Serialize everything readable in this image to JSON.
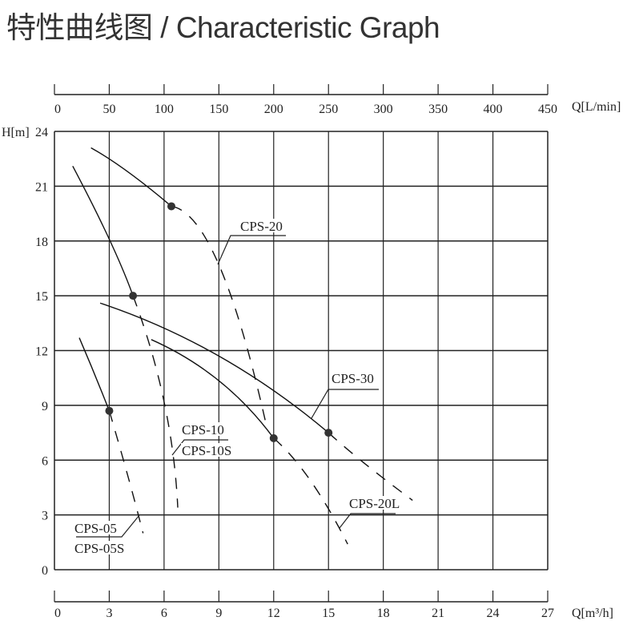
{
  "chart_data": {
    "type": "line",
    "title": "特性曲线图 / Characteristic Graph",
    "xlabel": "Q[m³/h]",
    "x2label": "Q[L/min]",
    "ylabel": "H[m]",
    "xlim": [
      0,
      27
    ],
    "x2lim": [
      0,
      450
    ],
    "ylim": [
      0,
      24
    ],
    "xticks": [
      "0",
      "3",
      "6",
      "9",
      "12",
      "15",
      "18",
      "21",
      "24",
      "27"
    ],
    "x2ticks": [
      "0",
      "50",
      "100",
      "150",
      "200",
      "250",
      "300",
      "350",
      "400",
      "450"
    ],
    "yticks": [
      "0",
      "3",
      "6",
      "9",
      "12",
      "15",
      "18",
      "21",
      "24"
    ],
    "grid": true,
    "series": [
      {
        "name": "CPS-05 / CPS-05S",
        "labels": [
          "CPS-05",
          "CPS-05S"
        ],
        "solid": [
          [
            1.36,
            12.7
          ],
          [
            2.2,
            10.7
          ],
          [
            3.0,
            8.7
          ]
        ],
        "dashed": [
          [
            3.0,
            8.7
          ],
          [
            4.0,
            5.2
          ],
          [
            4.85,
            2.0
          ]
        ],
        "point": [
          3.0,
          8.7
        ]
      },
      {
        "name": "CPS-10 / CPS-10S",
        "labels": [
          "CPS-10",
          "CPS-10S"
        ],
        "solid": [
          [
            1.0,
            22.1
          ],
          [
            3.0,
            18.1
          ],
          [
            4.3,
            15.0
          ]
        ],
        "dashed": [
          [
            4.3,
            15.0
          ],
          [
            6.0,
            9.2
          ],
          [
            6.75,
            3.4
          ]
        ],
        "point": [
          4.3,
          15.0
        ]
      },
      {
        "name": "CPS-20",
        "labels": [
          "CPS-20"
        ],
        "solid": [
          [
            2.0,
            23.1
          ],
          [
            4.0,
            21.8
          ],
          [
            6.4,
            19.9
          ]
        ],
        "dashed": [
          [
            6.4,
            19.9
          ],
          [
            9.0,
            16.7
          ],
          [
            11.6,
            7.9
          ]
        ],
        "point": [
          6.4,
          19.9
        ]
      },
      {
        "name": "CPS-20L",
        "labels": [
          "CPS-20L"
        ],
        "solid": [
          [
            5.3,
            12.6
          ],
          [
            9.0,
            10.35
          ],
          [
            12.0,
            7.2
          ]
        ],
        "dashed": [
          [
            12.0,
            7.2
          ],
          [
            14.0,
            4.9
          ],
          [
            16.05,
            1.4
          ]
        ],
        "point": [
          12.0,
          7.2
        ]
      },
      {
        "name": "CPS-30",
        "labels": [
          "CPS-30"
        ],
        "solid": [
          [
            2.5,
            14.6
          ],
          [
            9.0,
            11.7
          ],
          [
            15.0,
            7.5
          ]
        ],
        "dashed": [
          [
            15.0,
            7.5
          ],
          [
            17.0,
            5.8
          ],
          [
            19.6,
            3.8
          ]
        ],
        "point": [
          15.0,
          7.5
        ]
      }
    ]
  }
}
